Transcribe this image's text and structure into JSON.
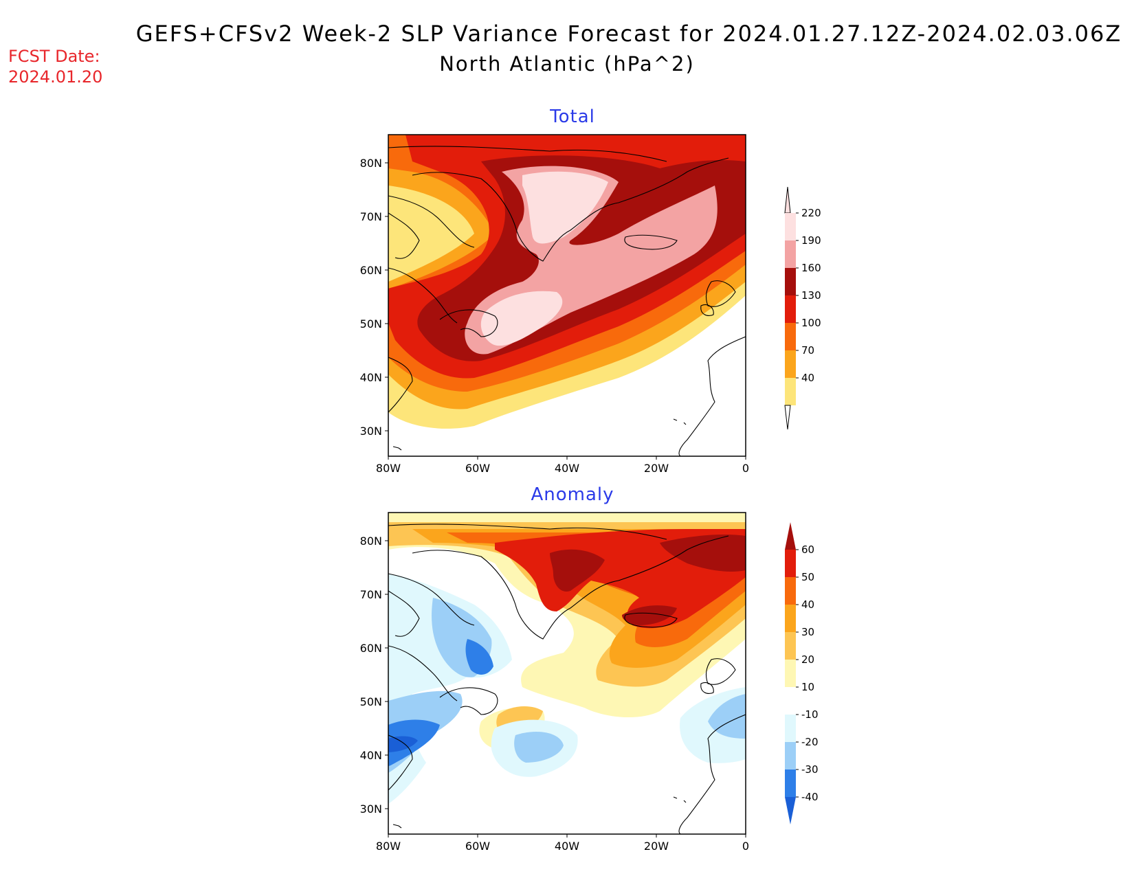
{
  "header": {
    "title_line1": "GEFS+CFSv2 Week-2 SLP Variance Forecast for 2024.01.27.12Z-2024.02.03.06Z",
    "title_line2": "North Atlantic (hPa^2)",
    "fcst_label": "FCST Date:",
    "fcst_date": "2024.01.20"
  },
  "panels": [
    {
      "title": "Total",
      "lat_ticks": [
        "80N",
        "70N",
        "60N",
        "50N",
        "40N",
        "30N"
      ],
      "lon_ticks": [
        "80W",
        "60W",
        "40W",
        "20W",
        "0"
      ],
      "colorbar": {
        "levels": [
          "40",
          "70",
          "100",
          "130",
          "160",
          "190",
          "220"
        ],
        "colors": [
          "#fde57a",
          "#fba51c",
          "#f86a0c",
          "#e21d0b",
          "#a50f0c",
          "#f3a3a3",
          "#fde0e0"
        ]
      }
    },
    {
      "title": "Anomaly",
      "lat_ticks": [
        "80N",
        "70N",
        "60N",
        "50N",
        "40N",
        "30N"
      ],
      "lon_ticks": [
        "80W",
        "60W",
        "40W",
        "20W",
        "0"
      ],
      "colorbar": {
        "levels": [
          "60",
          "50",
          "40",
          "30",
          "20",
          "10",
          "-10",
          "-20",
          "-30",
          "-40"
        ],
        "colors": [
          "#a50f0c",
          "#e21d0b",
          "#f86a0c",
          "#fba51c",
          "#fdc553",
          "#fef7b4",
          "#ffffff",
          "#e0f8fd",
          "#9ccff7",
          "#2e7fe8",
          "#1a5fd6"
        ]
      }
    }
  ],
  "colors": {
    "ocean_white": "#ffffff",
    "coast": "#000000"
  }
}
